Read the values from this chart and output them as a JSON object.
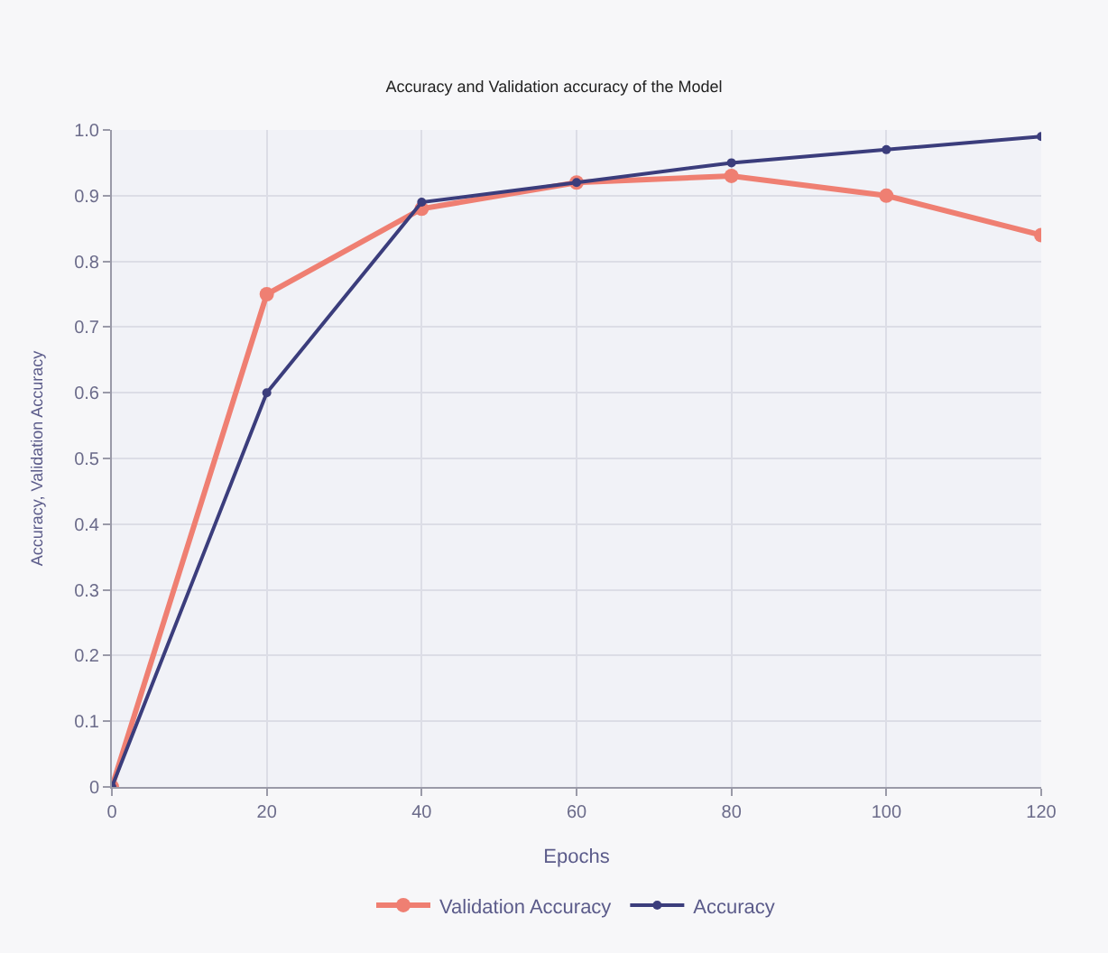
{
  "chart_data": {
    "type": "line",
    "title": "Accuracy and Validation accuracy of the Model",
    "xlabel": "Epochs",
    "ylabel": "Accuracy, Validation Accuracy",
    "x": [
      0,
      20,
      40,
      60,
      80,
      100,
      120
    ],
    "series": [
      {
        "name": "Validation Accuracy",
        "color": "#ef7f72",
        "values": [
          0,
          0.75,
          0.88,
          0.92,
          0.93,
          0.9,
          0.84
        ]
      },
      {
        "name": "Accuracy",
        "color": "#3b3d7c",
        "values": [
          0,
          0.6,
          0.89,
          0.92,
          0.95,
          0.97,
          0.99
        ]
      }
    ],
    "xlim": [
      0,
      120
    ],
    "xticks": [
      0,
      20,
      40,
      60,
      80,
      100,
      120
    ],
    "ylim": [
      0,
      1
    ],
    "yticks": [
      0,
      {
        "value": 0.1,
        "label": "0.1"
      },
      {
        "value": 0.2,
        "label": "0.2"
      },
      {
        "value": 0.3,
        "label": "0.3"
      },
      {
        "value": 0.4,
        "label": "0.4"
      },
      {
        "value": 0.5,
        "label": "0.5"
      },
      {
        "value": 0.6,
        "label": "0.6"
      },
      {
        "value": 0.7,
        "label": "0.7"
      },
      {
        "value": 0.8,
        "label": "0.8"
      },
      {
        "value": 0.9,
        "label": "0.9"
      },
      {
        "value": 1,
        "label": "1.0"
      }
    ],
    "grid": true,
    "legend": "bottom",
    "marker": "circle",
    "line_style": "solid"
  }
}
